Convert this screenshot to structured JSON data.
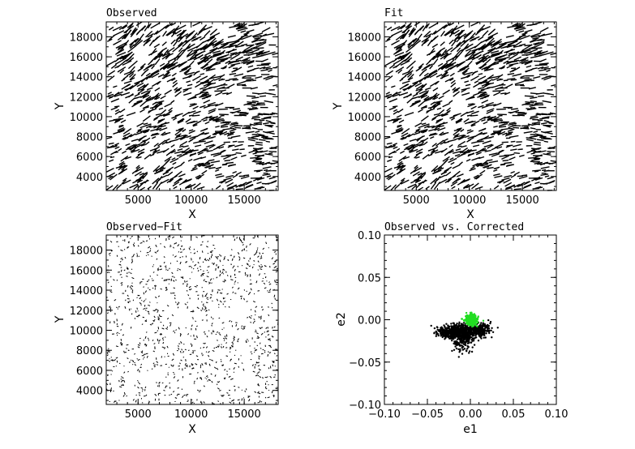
{
  "chart_data": [
    {
      "type": "quiver",
      "title": "Observed",
      "xlabel": "X",
      "ylabel": "Y",
      "xlim": [
        2000,
        18200
      ],
      "ylim": [
        2600,
        19500
      ],
      "xticks": [
        5000,
        10000,
        15000
      ],
      "yticks": [
        4000,
        6000,
        8000,
        10000,
        12000,
        14000,
        16000,
        18000
      ],
      "whisker_scale": "full",
      "grid": false
    },
    {
      "type": "quiver",
      "title": "Fit",
      "xlabel": "X",
      "ylabel": "Y",
      "xlim": [
        2000,
        18200
      ],
      "ylim": [
        2600,
        19500
      ],
      "xticks": [
        5000,
        10000,
        15000
      ],
      "yticks": [
        4000,
        6000,
        8000,
        10000,
        12000,
        14000,
        16000,
        18000
      ],
      "whisker_scale": "full",
      "grid": false
    },
    {
      "type": "quiver",
      "title": "Observed−Fit",
      "xlabel": "X",
      "ylabel": "Y",
      "xlim": [
        2000,
        18200
      ],
      "ylim": [
        2600,
        19500
      ],
      "xticks": [
        5000,
        10000,
        15000
      ],
      "yticks": [
        4000,
        6000,
        8000,
        10000,
        12000,
        14000,
        16000,
        18000
      ],
      "whisker_scale": "residual",
      "grid": false
    },
    {
      "type": "scatter",
      "title": "Observed vs. Corrected",
      "xlabel": "e1",
      "ylabel": "e2",
      "xlim": [
        -0.1,
        0.1
      ],
      "ylim": [
        -0.1,
        0.1
      ],
      "xticks": [
        -0.1,
        -0.05,
        0,
        0.05,
        0.1
      ],
      "xtick_labels": [
        "−0.10",
        "−0.05",
        "0.00",
        "0.05",
        "0.10"
      ],
      "yticks": [
        -0.1,
        -0.05,
        0,
        0.05,
        0.1
      ],
      "ytick_labels": [
        "−0.10",
        "−0.05",
        "0.00",
        "0.05",
        "0.10"
      ],
      "series": [
        {
          "color": "#000000",
          "clusters": [
            {
              "cx": -0.018,
              "cy": -0.014,
              "sx": 0.01,
              "sy": 0.004,
              "n": 500
            },
            {
              "cx": -0.008,
              "cy": -0.022,
              "sx": 0.006,
              "sy": 0.008,
              "n": 250
            },
            {
              "cx": 0.008,
              "cy": -0.012,
              "sx": 0.008,
              "sy": 0.004,
              "n": 300
            }
          ]
        },
        {
          "color": "#22dd22",
          "clusters": [
            {
              "cx": 0.001,
              "cy": 0.0,
              "sx": 0.003,
              "sy": 0.003,
              "n": 500
            }
          ]
        }
      ],
      "grid": false
    }
  ]
}
